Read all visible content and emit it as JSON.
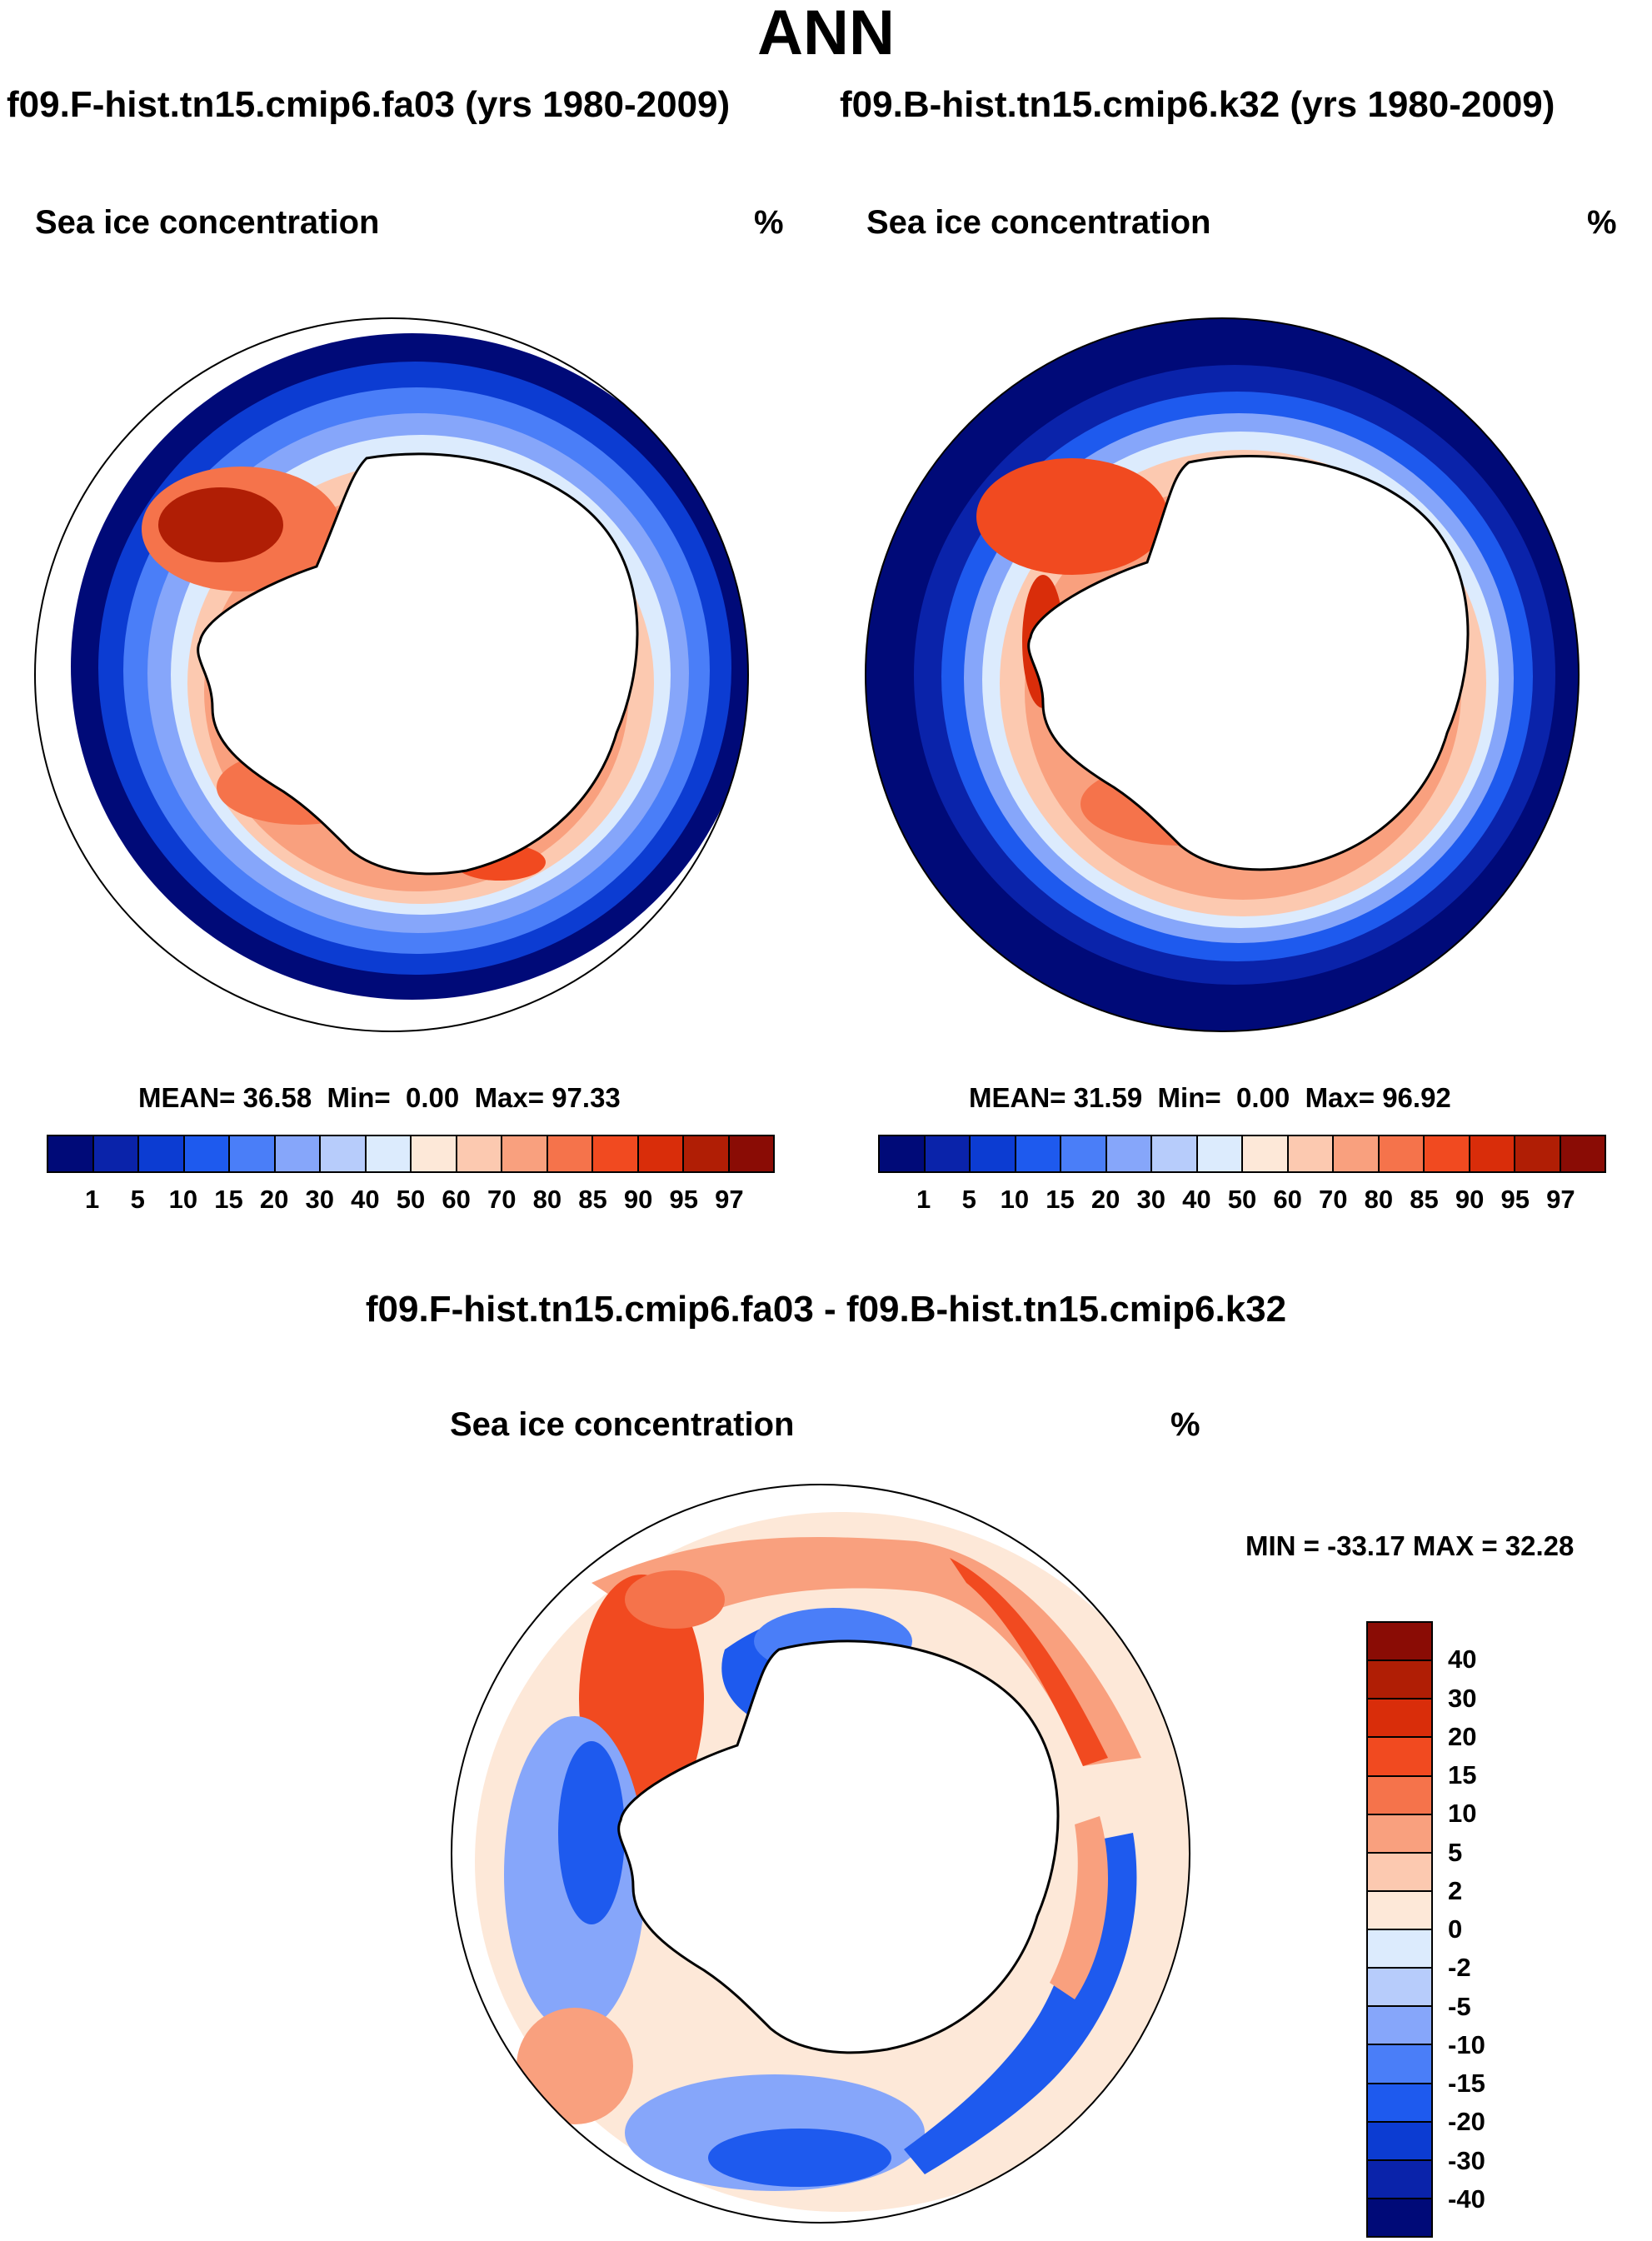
{
  "main_title": "ANN",
  "case1_title": "f09.F-hist.tn15.cmip6.fa03 (yrs 1980-2009)",
  "case2_title": "f09.B-hist.tn15.cmip6.k32 (yrs 1980-2009)",
  "diff_title": "f09.F-hist.tn15.cmip6.fa03 - f09.B-hist.tn15.cmip6.k32",
  "panels": {
    "left": {
      "variable": "Sea ice concentration",
      "units": "%",
      "mean": "36.58",
      "min": "0.00",
      "max": "97.33",
      "mean_label": "MEAN=",
      "min_label": "Min=",
      "max_label": "Max="
    },
    "right": {
      "variable": "Sea ice concentration",
      "units": "%",
      "mean": "31.59",
      "min": "0.00",
      "max": "96.92",
      "mean_label": "MEAN=",
      "min_label": "Min=",
      "max_label": "Max="
    },
    "diff": {
      "variable": "Sea ice concentration",
      "units": "%",
      "minmax": "MIN = -33.17 MAX =  32.28"
    }
  },
  "colorbar_levels": [
    "1",
    "5",
    "10",
    "15",
    "20",
    "30",
    "40",
    "50",
    "60",
    "70",
    "80",
    "85",
    "90",
    "95",
    "97"
  ],
  "colorbar_colors": [
    "#000a78",
    "#0a23aa",
    "#0c3cd2",
    "#1e5aee",
    "#4a7ef8",
    "#86a6fa",
    "#b7ccfb",
    "#dcebfd",
    "#fde8d8",
    "#fcc9b0",
    "#f9a07e",
    "#f5734b",
    "#f14a20",
    "#d92d0a",
    "#b01e05",
    "#8a0c05"
  ],
  "diff_levels": [
    "40",
    "30",
    "20",
    "15",
    "10",
    "5",
    "2",
    "0",
    "-2",
    "-5",
    "-10",
    "-15",
    "-20",
    "-30",
    "-40"
  ],
  "diff_colors": [
    "#8a0c05",
    "#b01e05",
    "#d92d0a",
    "#f14a20",
    "#f5734b",
    "#f9a07e",
    "#fcc9b0",
    "#fde8d8",
    "#dcebfd",
    "#b7ccfb",
    "#86a6fa",
    "#4a7ef8",
    "#1e5aee",
    "#0c3cd2",
    "#0a23aa",
    "#000a78"
  ]
}
